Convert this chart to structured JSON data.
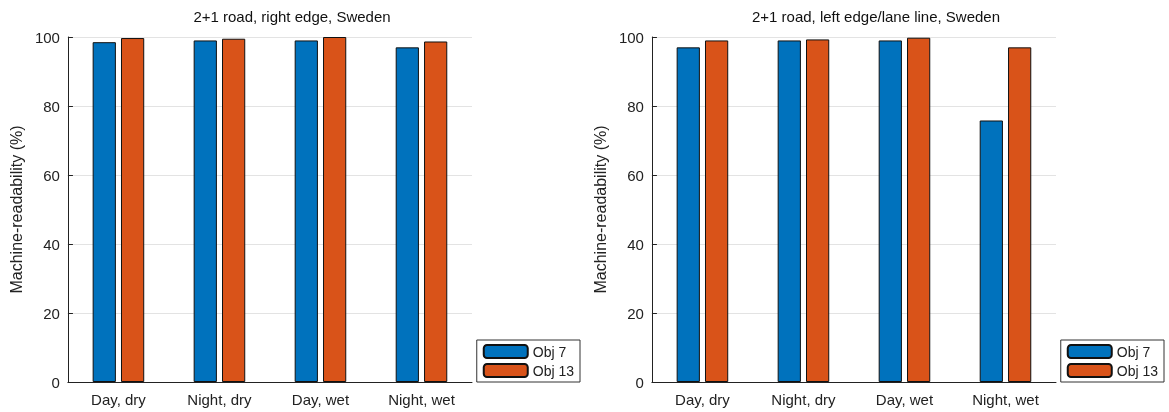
{
  "chart_data": [
    {
      "type": "bar",
      "title": "2+1 road, right edge, Sweden",
      "ylabel": "Machine-readability (%)",
      "categories": [
        "Day, dry",
        "Night, dry",
        "Day, wet",
        "Night, wet"
      ],
      "series": [
        {
          "name": "Obj 7",
          "color": "#0072bd",
          "values": [
            98.5,
            99,
            99,
            97
          ]
        },
        {
          "name": "Obj 13",
          "color": "#d95319",
          "values": [
            99.7,
            99.5,
            100,
            98.7
          ]
        }
      ],
      "ylim": [
        0,
        100
      ],
      "yticks": [
        0,
        20,
        40,
        60,
        80,
        100
      ],
      "grid": "y",
      "legend": "bottom right"
    },
    {
      "type": "bar",
      "title": "2+1 road, left edge/lane line, Sweden",
      "ylabel": "Machine-readability (%)",
      "categories": [
        "Day, dry",
        "Night, dry",
        "Day, wet",
        "Night, wet"
      ],
      "series": [
        {
          "name": "Obj 7",
          "color": "#0072bd",
          "values": [
            97,
            99,
            99,
            75.8
          ]
        },
        {
          "name": "Obj 13",
          "color": "#d95319",
          "values": [
            99,
            99.3,
            99.8,
            97
          ]
        }
      ],
      "ylim": [
        0,
        100
      ],
      "yticks": [
        0,
        20,
        40,
        60,
        80,
        100
      ],
      "grid": "y",
      "legend": "bottom right"
    }
  ]
}
